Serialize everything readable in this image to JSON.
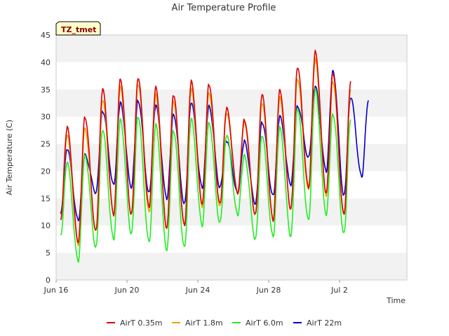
{
  "chart_data": {
    "type": "line",
    "title": "Air Temperature Profile",
    "xlabel": "Time",
    "ylabel": "Air Temperature (C)",
    "badge": "TZ_tmet",
    "ylim": [
      0,
      45
    ],
    "yticks": [
      0,
      5,
      10,
      15,
      20,
      25,
      30,
      35,
      40,
      45
    ],
    "xlim": [
      0,
      19.8
    ],
    "xticks": [
      {
        "pos": 0,
        "label": "Jun 16"
      },
      {
        "pos": 4,
        "label": "Jun 20"
      },
      {
        "pos": 8,
        "label": "Jun 24"
      },
      {
        "pos": 12,
        "label": "Jun 28"
      },
      {
        "pos": 16,
        "label": "Jul 2"
      }
    ],
    "grid": "horizontal bands",
    "legend_position": "bottom",
    "start_day": "Jun 16",
    "daily_minmax": {
      "AirT 0.35m": {
        "max": [
          28,
          30,
          35,
          37,
          37,
          35.5,
          34,
          36.5,
          36,
          31.5,
          29.5,
          34,
          35,
          39,
          42,
          38,
          36.5
        ],
        "min": [
          11,
          7,
          9,
          12,
          12,
          13.5,
          9.5,
          10,
          14,
          14,
          16,
          12,
          11,
          13,
          17,
          16,
          12
        ]
      },
      "AirT 1.8m": {
        "max": [
          26.5,
          28,
          33,
          35.5,
          36,
          34,
          33,
          35,
          34.5,
          30.5,
          29,
          32.5,
          33.5,
          37,
          40.5,
          36.5,
          35
        ],
        "min": [
          11,
          6.5,
          9,
          12,
          12,
          12.5,
          9.5,
          10,
          13.5,
          13.5,
          16,
          12,
          11,
          13,
          16.5,
          15.5,
          12
        ]
      },
      "AirT 6.0m": {
        "max": [
          21.5,
          23,
          27.5,
          29.5,
          30,
          28.5,
          27.5,
          29.5,
          29,
          26.5,
          23,
          26.5,
          28,
          31.5,
          35,
          30.5,
          29.5
        ],
        "min": [
          8,
          3.5,
          6,
          7.5,
          8.5,
          7,
          5.5,
          6,
          10,
          10.5,
          12,
          7.5,
          8,
          8,
          11,
          12,
          8.5
        ]
      },
      "AirT 22m": {
        "max": [
          24,
          23,
          31,
          32.5,
          33,
          32,
          30.5,
          32.5,
          32,
          25.5,
          25.5,
          29,
          30,
          32,
          35.5,
          38.5,
          33.5,
          33
        ],
        "min": [
          12,
          11,
          16,
          17.5,
          17,
          16,
          15,
          14,
          17,
          17,
          16,
          14,
          15.5,
          17.5,
          22.5,
          20,
          15.5,
          19
        ]
      }
    },
    "series": [
      {
        "name": "AirT 0.35m",
        "color": "#e00000"
      },
      {
        "name": "AirT 1.8m",
        "color": "#f0a000"
      },
      {
        "name": "AirT 6.0m",
        "color": "#22ee22"
      },
      {
        "name": "AirT 22m",
        "color": "#0000cc"
      }
    ]
  }
}
